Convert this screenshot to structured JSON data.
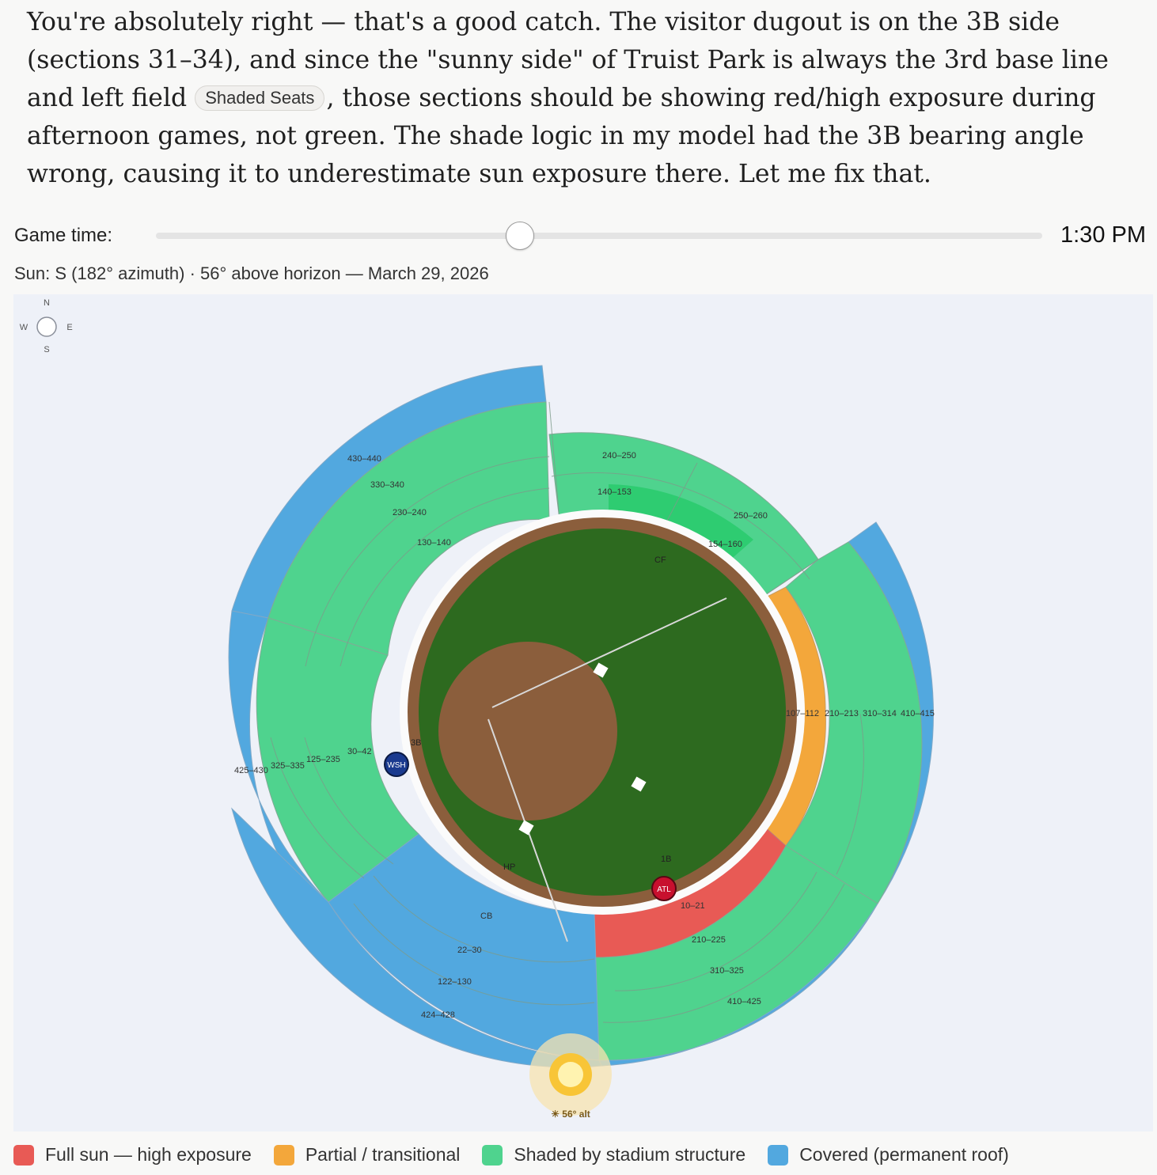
{
  "message": {
    "line1": "You're absolutely right — that's a good catch. The visitor dugout is on the 3B side (sections 31–34), and since the \"sunny side\" of Truist Park is always the 3rd base line and left field ",
    "chip_label": "Shaded Seats",
    "line2": ", those sections should be showing red/high exposure during afternoon games, not green. The shade logic in my model had the 3B bearing angle wrong, causing it to underestimate sun exposure there. Let me fix that."
  },
  "controls": {
    "game_time_label": "Game time:",
    "game_time_value": "1:30 PM",
    "slider_fraction": 0.41,
    "sun_info": "Sun: S (182° azimuth) · 56° above horizon — March 29, 2026"
  },
  "compass": {
    "n": "N",
    "w": "W",
    "e": "E",
    "s": "S"
  },
  "field": {
    "labels": {
      "cf": "CF",
      "third_base": "3B",
      "first_base": "1B",
      "home_plate": "HP",
      "behind_plate": "CB"
    },
    "visitor_dugout": "WSH",
    "home_dugout": "ATL",
    "sun_altitude_label": "☀ 56° alt"
  },
  "sections": {
    "cf_upper": "240–250",
    "cf_lower": "140–153",
    "rcf_upper": "250–260",
    "rcf_lower": "154–160",
    "lcf_400": "430–440",
    "lcf_300": "330–340",
    "lcf_200": "230–240",
    "lcf_100": "130–140",
    "rf_100": "107–112",
    "rf_200": "210–213",
    "rf_300": "310–314",
    "rf_400": "410–415",
    "lf_400": "425–430",
    "lf_300": "325–335",
    "lf_200": "125–235",
    "lf_100": "30–42",
    "fb_100": "10–21",
    "fb_200": "210–225",
    "fb_300": "310–325",
    "fb_400": "410–425",
    "hp_100": "22–30",
    "hp_200": "122–130",
    "hp_400": "424–428"
  },
  "legend": [
    {
      "label": "Full sun — high exposure",
      "color": "#e85a55"
    },
    {
      "label": "Partial / transitional",
      "color": "#f3a73b"
    },
    {
      "label": "Shaded by stadium structure",
      "color": "#4fd38e"
    },
    {
      "label": "Covered (permanent roof)",
      "color": "#52a8df"
    }
  ],
  "colors": {
    "full_sun": "#e85a55",
    "partial": "#f3a73b",
    "shaded": "#4fd38e",
    "shaded_strong": "#2ecc71",
    "covered": "#52a8df",
    "grass": "#2d6a1f",
    "dirt": "#8b5e3c",
    "visitor": "#1a3a8f",
    "home": "#c8102e"
  }
}
